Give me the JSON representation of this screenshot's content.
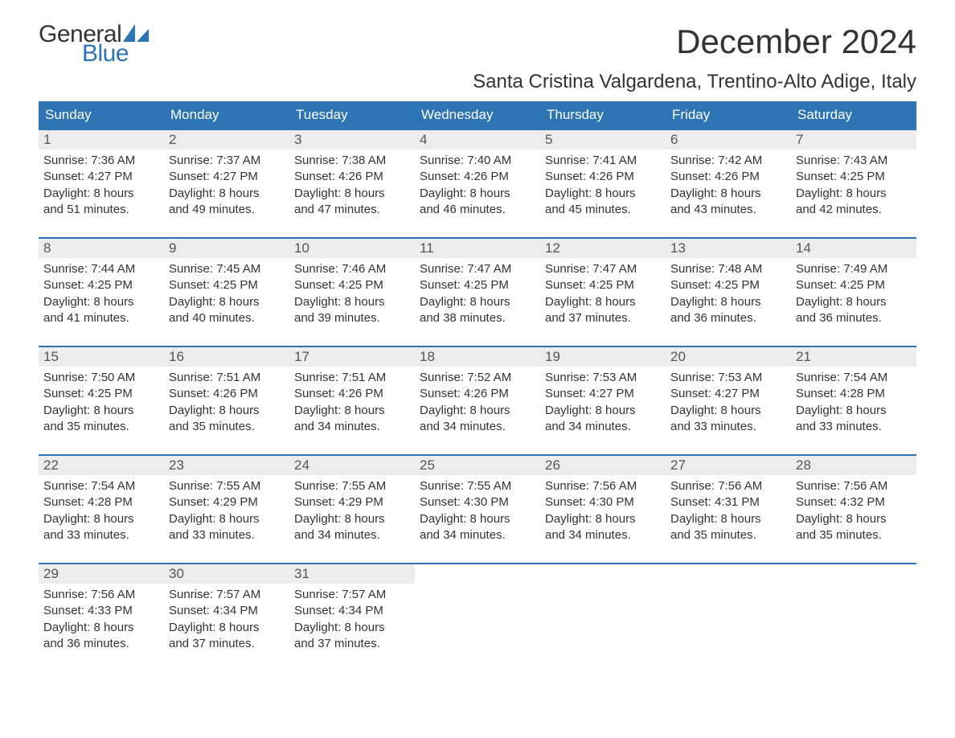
{
  "logo": {
    "line1": "General",
    "line2": "Blue",
    "sail_color": "#2d74b5",
    "text_dark": "#333333",
    "text_blue": "#2d74b5"
  },
  "title": "December 2024",
  "location": "Santa Cristina Valgardena, Trentino-Alto Adige, Italy",
  "colors": {
    "header_bg": "#2d74b5",
    "header_text": "#ffffff",
    "daynum_bg": "#ececec",
    "daynum_text": "#555555",
    "body_text": "#333333",
    "week_border": "#2d74b5",
    "page_bg": "#ffffff"
  },
  "typography": {
    "title_fontsize": 42,
    "location_fontsize": 24,
    "dow_fontsize": 17,
    "daynum_fontsize": 17,
    "body_fontsize": 15,
    "logo_fontsize": 30
  },
  "days_of_week": [
    "Sunday",
    "Monday",
    "Tuesday",
    "Wednesday",
    "Thursday",
    "Friday",
    "Saturday"
  ],
  "weeks": [
    [
      {
        "num": "1",
        "sunrise": "Sunrise: 7:36 AM",
        "sunset": "Sunset: 4:27 PM",
        "dl1": "Daylight: 8 hours",
        "dl2": "and 51 minutes."
      },
      {
        "num": "2",
        "sunrise": "Sunrise: 7:37 AM",
        "sunset": "Sunset: 4:27 PM",
        "dl1": "Daylight: 8 hours",
        "dl2": "and 49 minutes."
      },
      {
        "num": "3",
        "sunrise": "Sunrise: 7:38 AM",
        "sunset": "Sunset: 4:26 PM",
        "dl1": "Daylight: 8 hours",
        "dl2": "and 47 minutes."
      },
      {
        "num": "4",
        "sunrise": "Sunrise: 7:40 AM",
        "sunset": "Sunset: 4:26 PM",
        "dl1": "Daylight: 8 hours",
        "dl2": "and 46 minutes."
      },
      {
        "num": "5",
        "sunrise": "Sunrise: 7:41 AM",
        "sunset": "Sunset: 4:26 PM",
        "dl1": "Daylight: 8 hours",
        "dl2": "and 45 minutes."
      },
      {
        "num": "6",
        "sunrise": "Sunrise: 7:42 AM",
        "sunset": "Sunset: 4:26 PM",
        "dl1": "Daylight: 8 hours",
        "dl2": "and 43 minutes."
      },
      {
        "num": "7",
        "sunrise": "Sunrise: 7:43 AM",
        "sunset": "Sunset: 4:25 PM",
        "dl1": "Daylight: 8 hours",
        "dl2": "and 42 minutes."
      }
    ],
    [
      {
        "num": "8",
        "sunrise": "Sunrise: 7:44 AM",
        "sunset": "Sunset: 4:25 PM",
        "dl1": "Daylight: 8 hours",
        "dl2": "and 41 minutes."
      },
      {
        "num": "9",
        "sunrise": "Sunrise: 7:45 AM",
        "sunset": "Sunset: 4:25 PM",
        "dl1": "Daylight: 8 hours",
        "dl2": "and 40 minutes."
      },
      {
        "num": "10",
        "sunrise": "Sunrise: 7:46 AM",
        "sunset": "Sunset: 4:25 PM",
        "dl1": "Daylight: 8 hours",
        "dl2": "and 39 minutes."
      },
      {
        "num": "11",
        "sunrise": "Sunrise: 7:47 AM",
        "sunset": "Sunset: 4:25 PM",
        "dl1": "Daylight: 8 hours",
        "dl2": "and 38 minutes."
      },
      {
        "num": "12",
        "sunrise": "Sunrise: 7:47 AM",
        "sunset": "Sunset: 4:25 PM",
        "dl1": "Daylight: 8 hours",
        "dl2": "and 37 minutes."
      },
      {
        "num": "13",
        "sunrise": "Sunrise: 7:48 AM",
        "sunset": "Sunset: 4:25 PM",
        "dl1": "Daylight: 8 hours",
        "dl2": "and 36 minutes."
      },
      {
        "num": "14",
        "sunrise": "Sunrise: 7:49 AM",
        "sunset": "Sunset: 4:25 PM",
        "dl1": "Daylight: 8 hours",
        "dl2": "and 36 minutes."
      }
    ],
    [
      {
        "num": "15",
        "sunrise": "Sunrise: 7:50 AM",
        "sunset": "Sunset: 4:25 PM",
        "dl1": "Daylight: 8 hours",
        "dl2": "and 35 minutes."
      },
      {
        "num": "16",
        "sunrise": "Sunrise: 7:51 AM",
        "sunset": "Sunset: 4:26 PM",
        "dl1": "Daylight: 8 hours",
        "dl2": "and 35 minutes."
      },
      {
        "num": "17",
        "sunrise": "Sunrise: 7:51 AM",
        "sunset": "Sunset: 4:26 PM",
        "dl1": "Daylight: 8 hours",
        "dl2": "and 34 minutes."
      },
      {
        "num": "18",
        "sunrise": "Sunrise: 7:52 AM",
        "sunset": "Sunset: 4:26 PM",
        "dl1": "Daylight: 8 hours",
        "dl2": "and 34 minutes."
      },
      {
        "num": "19",
        "sunrise": "Sunrise: 7:53 AM",
        "sunset": "Sunset: 4:27 PM",
        "dl1": "Daylight: 8 hours",
        "dl2": "and 34 minutes."
      },
      {
        "num": "20",
        "sunrise": "Sunrise: 7:53 AM",
        "sunset": "Sunset: 4:27 PM",
        "dl1": "Daylight: 8 hours",
        "dl2": "and 33 minutes."
      },
      {
        "num": "21",
        "sunrise": "Sunrise: 7:54 AM",
        "sunset": "Sunset: 4:28 PM",
        "dl1": "Daylight: 8 hours",
        "dl2": "and 33 minutes."
      }
    ],
    [
      {
        "num": "22",
        "sunrise": "Sunrise: 7:54 AM",
        "sunset": "Sunset: 4:28 PM",
        "dl1": "Daylight: 8 hours",
        "dl2": "and 33 minutes."
      },
      {
        "num": "23",
        "sunrise": "Sunrise: 7:55 AM",
        "sunset": "Sunset: 4:29 PM",
        "dl1": "Daylight: 8 hours",
        "dl2": "and 33 minutes."
      },
      {
        "num": "24",
        "sunrise": "Sunrise: 7:55 AM",
        "sunset": "Sunset: 4:29 PM",
        "dl1": "Daylight: 8 hours",
        "dl2": "and 34 minutes."
      },
      {
        "num": "25",
        "sunrise": "Sunrise: 7:55 AM",
        "sunset": "Sunset: 4:30 PM",
        "dl1": "Daylight: 8 hours",
        "dl2": "and 34 minutes."
      },
      {
        "num": "26",
        "sunrise": "Sunrise: 7:56 AM",
        "sunset": "Sunset: 4:30 PM",
        "dl1": "Daylight: 8 hours",
        "dl2": "and 34 minutes."
      },
      {
        "num": "27",
        "sunrise": "Sunrise: 7:56 AM",
        "sunset": "Sunset: 4:31 PM",
        "dl1": "Daylight: 8 hours",
        "dl2": "and 35 minutes."
      },
      {
        "num": "28",
        "sunrise": "Sunrise: 7:56 AM",
        "sunset": "Sunset: 4:32 PM",
        "dl1": "Daylight: 8 hours",
        "dl2": "and 35 minutes."
      }
    ],
    [
      {
        "num": "29",
        "sunrise": "Sunrise: 7:56 AM",
        "sunset": "Sunset: 4:33 PM",
        "dl1": "Daylight: 8 hours",
        "dl2": "and 36 minutes."
      },
      {
        "num": "30",
        "sunrise": "Sunrise: 7:57 AM",
        "sunset": "Sunset: 4:34 PM",
        "dl1": "Daylight: 8 hours",
        "dl2": "and 37 minutes."
      },
      {
        "num": "31",
        "sunrise": "Sunrise: 7:57 AM",
        "sunset": "Sunset: 4:34 PM",
        "dl1": "Daylight: 8 hours",
        "dl2": "and 37 minutes."
      },
      null,
      null,
      null,
      null
    ]
  ]
}
